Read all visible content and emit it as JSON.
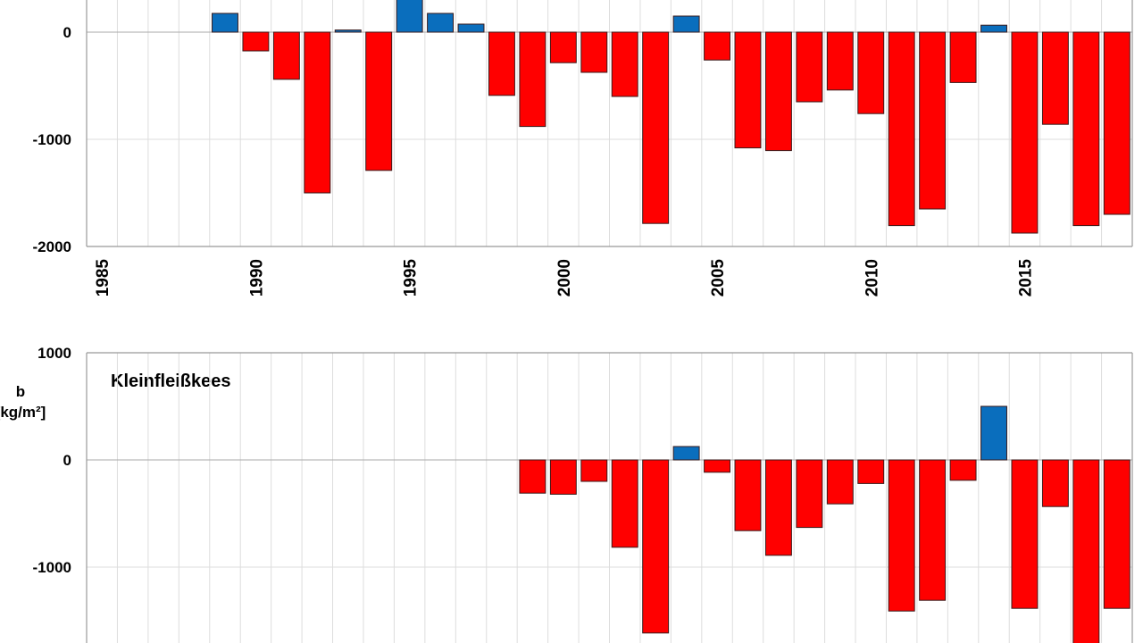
{
  "colors": {
    "positive": "#0a6ebd",
    "negative": "#ff0000",
    "outline": "#3a1a1a",
    "grid": "#dddddd",
    "axis": "#999999"
  },
  "chart_data": [
    {
      "type": "bar",
      "title": "",
      "xlabel": "",
      "ylabel": "",
      "x_tick_labels": [
        "1985",
        "1990",
        "1995",
        "2000",
        "2005",
        "2010",
        "2015"
      ],
      "y_tick_labels": [
        "0",
        "-1000",
        "-2000"
      ],
      "ylim": [
        -2000,
        300
      ],
      "grid": true,
      "categories": [
        1985,
        1986,
        1987,
        1988,
        1989,
        1990,
        1991,
        1992,
        1993,
        1994,
        1995,
        1996,
        1997,
        1998,
        1999,
        2000,
        2001,
        2002,
        2003,
        2004,
        2005,
        2006,
        2007,
        2008,
        2009,
        2010,
        2011,
        2012,
        2013,
        2014,
        2015,
        2016,
        2017,
        2018
      ],
      "values": [
        null,
        null,
        null,
        null,
        175,
        -175,
        -440,
        -1500,
        20,
        -1290,
        350,
        175,
        75,
        -590,
        -880,
        -285,
        -375,
        -600,
        -1785,
        150,
        -260,
        -1080,
        -1105,
        -650,
        -540,
        -760,
        -1805,
        -1650,
        -470,
        65,
        -1875,
        -860,
        -1805,
        -1700
      ]
    },
    {
      "type": "bar",
      "title": "Kleinfleißkees",
      "xlabel": "",
      "ylabel": "b [kg/m²]",
      "ylabel_lines": [
        "b",
        "[kg/m²]"
      ],
      "y_tick_labels": [
        "1000",
        "0",
        "-1000"
      ],
      "ylim": [
        -1700,
        1000
      ],
      "grid": true,
      "categories": [
        1985,
        1986,
        1987,
        1988,
        1989,
        1990,
        1991,
        1992,
        1993,
        1994,
        1995,
        1996,
        1997,
        1998,
        1999,
        2000,
        2001,
        2002,
        2003,
        2004,
        2005,
        2006,
        2007,
        2008,
        2009,
        2010,
        2011,
        2012,
        2013,
        2014,
        2015,
        2016,
        2017,
        2018
      ],
      "values": [
        null,
        null,
        null,
        null,
        null,
        null,
        null,
        null,
        null,
        null,
        null,
        null,
        null,
        null,
        -310,
        -320,
        -200,
        -815,
        -1615,
        125,
        -115,
        -660,
        -890,
        -630,
        -410,
        -220,
        -1410,
        -1310,
        -190,
        500,
        -1385,
        -435,
        -1750,
        -1385
      ]
    }
  ]
}
